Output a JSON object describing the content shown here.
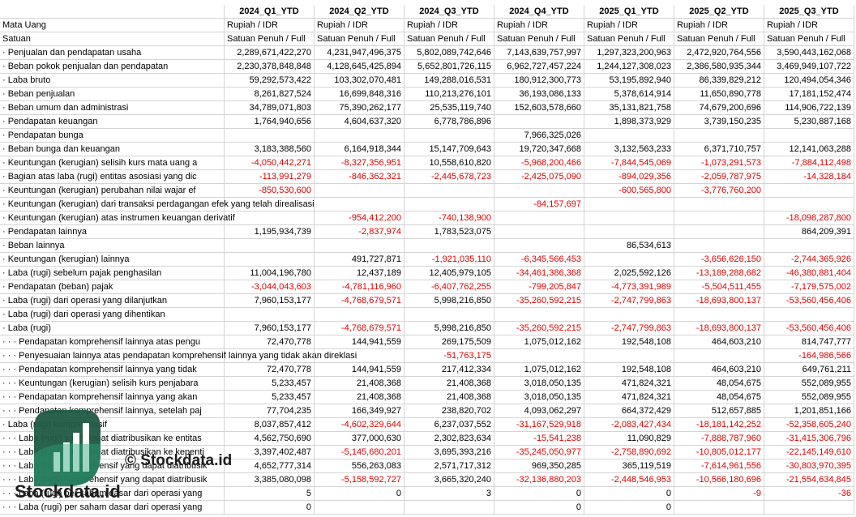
{
  "table": {
    "columns": [
      "2024_Q1_YTD",
      "2024_Q2_YTD",
      "2024_Q3_YTD",
      "2024_Q4_YTD",
      "2025_Q1_YTD",
      "2025_Q2_YTD",
      "2025_Q3_YTD"
    ],
    "currency_label": "Mata Uang",
    "currency": [
      "Rupiah / IDR",
      "Rupiah / IDR",
      "Rupiah / IDR",
      "Rupiah / IDR",
      "Rupiah / IDR",
      "Rupiah / IDR",
      "Rupiah / IDR"
    ],
    "unit_label": "Satuan",
    "units": [
      "Satuan Penuh / Full",
      "Satuan Penuh / Full",
      "Satuan Penuh / Full",
      "Satuan Penuh / Full",
      "Satuan Penuh / Full",
      "Satuan Penuh / Full",
      "Satuan Penuh / Full"
    ],
    "rows": [
      {
        "label": "· Penjualan dan pendapatan usaha",
        "values": [
          "2,289,671,422,270",
          "4,231,947,496,375",
          "5,802,089,742,646",
          "7,143,639,757,997",
          "1,297,323,200,963",
          "2,472,920,764,556",
          "3,590,443,162,068"
        ]
      },
      {
        "label": "· Beban pokok penjualan dan pendapatan",
        "values": [
          "2,230,378,848,848",
          "4,128,645,425,894",
          "5,652,801,726,115",
          "6,962,727,457,224",
          "1,244,127,308,023",
          "2,386,580,935,344",
          "3,469,949,107,722"
        ]
      },
      {
        "label": "· Laba bruto",
        "values": [
          "59,292,573,422",
          "103,302,070,481",
          "149,288,016,531",
          "180,912,300,773",
          "53,195,892,940",
          "86,339,829,212",
          "120,494,054,346"
        ]
      },
      {
        "label": "· Beban penjualan",
        "values": [
          "8,261,827,524",
          "16,699,848,316",
          "110,213,276,101",
          "36,193,086,133",
          "5,378,614,914",
          "11,650,890,778",
          "17,181,152,474"
        ]
      },
      {
        "label": "· Beban umum dan administrasi",
        "values": [
          "34,789,071,803",
          "75,390,262,177",
          "25,535,119,740",
          "152,603,578,660",
          "35,131,821,758",
          "74,679,200,696",
          "114,906,722,139"
        ]
      },
      {
        "label": "· Pendapatan keuangan",
        "values": [
          "1,764,940,656",
          "4,604,637,320",
          "6,778,786,896",
          null,
          "1,898,373,929",
          "3,739,150,235",
          "5,230,887,168"
        ]
      },
      {
        "label": "· Pendapatan bunga",
        "values": [
          null,
          null,
          null,
          "7,966,325,026",
          null,
          null,
          null
        ]
      },
      {
        "label": "· Beban bunga dan keuangan",
        "values": [
          "3,183,388,560",
          "6,164,918,344",
          "15,147,709,643",
          "19,720,347,668",
          "3,132,563,233",
          "6,371,710,757",
          "12,141,063,288"
        ]
      },
      {
        "label": "· Keuntungan (kerugian) selisih kurs mata uang a",
        "values": [
          "-4,050,442,271",
          "-8,327,356,951",
          "10,558,610,820",
          "-5,968,200,466",
          "-7,844,545,069",
          "-1,073,291,573",
          "-7,884,112,498"
        ]
      },
      {
        "label": "· Bagian atas laba (rugi) entitas asosiasi yang dic",
        "values": [
          "-113,991,279",
          "-846,362,321",
          "-2,445,678,723",
          "-2,425,075,090",
          "-894,029,356",
          "-2,059,787,975",
          "-14,328,184"
        ]
      },
      {
        "label": "· Keuntungan (kerugian) perubahan nilai wajar ef",
        "values": [
          "-850,530,600",
          null,
          null,
          null,
          "-600,565,800",
          "-3,776,760,200",
          null
        ]
      },
      {
        "label": "· Keuntungan (kerugian) dari transaksi perdagangan efek yang telah direalisasi",
        "values": [
          null,
          null,
          null,
          "-84,157,697",
          null,
          null,
          null
        ]
      },
      {
        "label": "· Keuntungan (kerugian) atas instrumen keuangan derivatif",
        "values": [
          null,
          "-954,412,200",
          "-740,138,900",
          null,
          null,
          null,
          "-18,098,287,800"
        ]
      },
      {
        "label": "· Pendapatan lainnya",
        "values": [
          "1,195,934,739",
          "-2,837,974",
          "1,783,523,075",
          null,
          null,
          null,
          "864,209,391"
        ]
      },
      {
        "label": "· Beban lainnya",
        "values": [
          null,
          null,
          null,
          null,
          "86,534,613",
          null,
          null
        ]
      },
      {
        "label": "· Keuntungan (kerugian) lainnya",
        "values": [
          null,
          "491,727,871",
          "-1,921,035,110",
          "-6,345,566,453",
          null,
          "-3,656,626,150",
          "-2,744,365,926"
        ]
      },
      {
        "label": "· Laba (rugi) sebelum pajak penghasilan",
        "values": [
          "11,004,196,780",
          "12,437,189",
          "12,405,979,105",
          "-34,461,386,368",
          "2,025,592,126",
          "-13,189,288,682",
          "-46,380,881,404"
        ]
      },
      {
        "label": "· Pendapatan (beban) pajak",
        "values": [
          "-3,044,043,603",
          "-4,781,116,960",
          "-6,407,762,255",
          "-799,205,847",
          "-4,773,391,989",
          "-5,504,511,455",
          "-7,179,575,002"
        ]
      },
      {
        "label": "· Laba (rugi) dari operasi yang dilanjutkan",
        "values": [
          "7,960,153,177",
          "-4,768,679,571",
          "5,998,216,850",
          "-35,260,592,215",
          "-2,747,799,863",
          "-18,693,800,137",
          "-53,560,456,406"
        ]
      },
      {
        "label": "· Laba (rugi) dari operasi yang dihentikan",
        "values": [
          null,
          null,
          null,
          null,
          null,
          null,
          null
        ]
      },
      {
        "label": "· Laba (rugi)",
        "values": [
          "7,960,153,177",
          "-4,768,679,571",
          "5,998,216,850",
          "-35,260,592,215",
          "-2,747,799,863",
          "-18,693,800,137",
          "-53,560,456,406"
        ]
      },
      {
        "label": "· · · Pendapatan komprehensif lainnya atas pengu",
        "values": [
          "72,470,778",
          "144,941,559",
          "269,175,509",
          "1,075,012,162",
          "192,548,108",
          "464,603,210",
          "814,747,777"
        ]
      },
      {
        "label": "· · · Penyesuaian lainnya atas pendapatan komprehensif lainnya yang tidak akan direklasi",
        "values": [
          null,
          null,
          "-51,763,175",
          null,
          null,
          null,
          "-164,986,566"
        ]
      },
      {
        "label": "· · · Pendapatan komprehensif lainnya yang tidak",
        "values": [
          "72,470,778",
          "144,941,559",
          "217,412,334",
          "1,075,012,162",
          "192,548,108",
          "464,603,210",
          "649,761,211"
        ]
      },
      {
        "label": "· · · Keuntungan (kerugian) selisih kurs penjabara",
        "values": [
          "5,233,457",
          "21,408,368",
          "21,408,368",
          "3,018,050,135",
          "471,824,321",
          "48,054,675",
          "552,089,955"
        ]
      },
      {
        "label": "· · · Pendapatan komprehensif lainnya yang akan",
        "values": [
          "5,233,457",
          "21,408,368",
          "21,408,368",
          "3,018,050,135",
          "471,824,321",
          "48,054,675",
          "552,089,955"
        ]
      },
      {
        "label": "· · · Pendapatan komprehensif lainnya, setelah paj",
        "values": [
          "77,704,235",
          "166,349,927",
          "238,820,702",
          "4,093,062,297",
          "664,372,429",
          "512,657,885",
          "1,201,851,166"
        ]
      },
      {
        "label": "· Laba (rugi) komprehensif",
        "values": [
          "8,037,857,412",
          "-4,602,329,644",
          "6,237,037,552",
          "-31,167,529,918",
          "-2,083,427,434",
          "-18,181,142,252",
          "-52,358,605,240"
        ]
      },
      {
        "label": "· · · Laba (rugi) yang dapat diatribusikan ke entitas",
        "values": [
          "4,562,750,690",
          "377,000,630",
          "2,302,823,634",
          "-15,541,238",
          "11,090,829",
          "-7,888,787,960",
          "-31,415,306,796"
        ]
      },
      {
        "label": "· · · Laba (rugi) yang dapat diatribusikan ke kepenti",
        "values": [
          "3,397,402,487",
          "-5,145,680,201",
          "3,695,393,216",
          "-35,245,050,977",
          "-2,758,890,692",
          "-10,805,012,177",
          "-22,145,149,610"
        ]
      },
      {
        "label": "· · · Laba (rugi) komprehensif yang dapat diatribusik",
        "values": [
          "4,652,777,314",
          "556,263,083",
          "2,571,717,312",
          "969,350,285",
          "365,119,519",
          "-7,614,961,556",
          "-30,803,970,395"
        ]
      },
      {
        "label": "· · · Laba (rugi) komprehensif yang dapat diatribusik",
        "values": [
          "3,385,080,098",
          "-5,158,592,727",
          "3,665,320,240",
          "-32,136,880,203",
          "-2,448,546,953",
          "-10,566,180,696",
          "-21,554,634,845"
        ]
      },
      {
        "label": "· · · Laba (rugi) per saham dasar dari operasi yang",
        "values": [
          "5",
          "0",
          "3",
          "0",
          "0",
          "-9",
          "-36"
        ]
      },
      {
        "label": "· · · Laba (rugi) per saham dasar dari operasi yang",
        "values": [
          "0",
          null,
          null,
          "0",
          "0",
          null,
          null
        ]
      }
    ]
  },
  "watermark": {
    "center": "© Stockdata.id",
    "logo_text": "Stockdata.id"
  }
}
